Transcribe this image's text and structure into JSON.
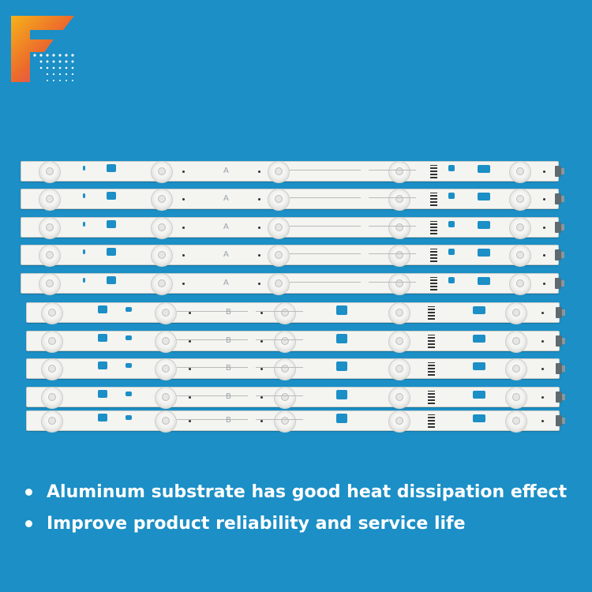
{
  "brand": {
    "logo_letter": "F",
    "colors": {
      "background": "#1b8fc6",
      "logo_gradient": [
        "#f5a01e",
        "#ea5b32",
        "#e2348a"
      ]
    }
  },
  "strips": [
    {
      "label": "A"
    },
    {
      "label": "A"
    },
    {
      "label": "A"
    },
    {
      "label": "A"
    },
    {
      "label": "A"
    },
    {
      "label": "B"
    },
    {
      "label": "B"
    },
    {
      "label": "B"
    },
    {
      "label": "B"
    },
    {
      "label": "B"
    }
  ],
  "features": [
    {
      "text": "Aluminum substrate has good heat dissipation effect"
    },
    {
      "text": "Improve product reliability and service life"
    }
  ]
}
